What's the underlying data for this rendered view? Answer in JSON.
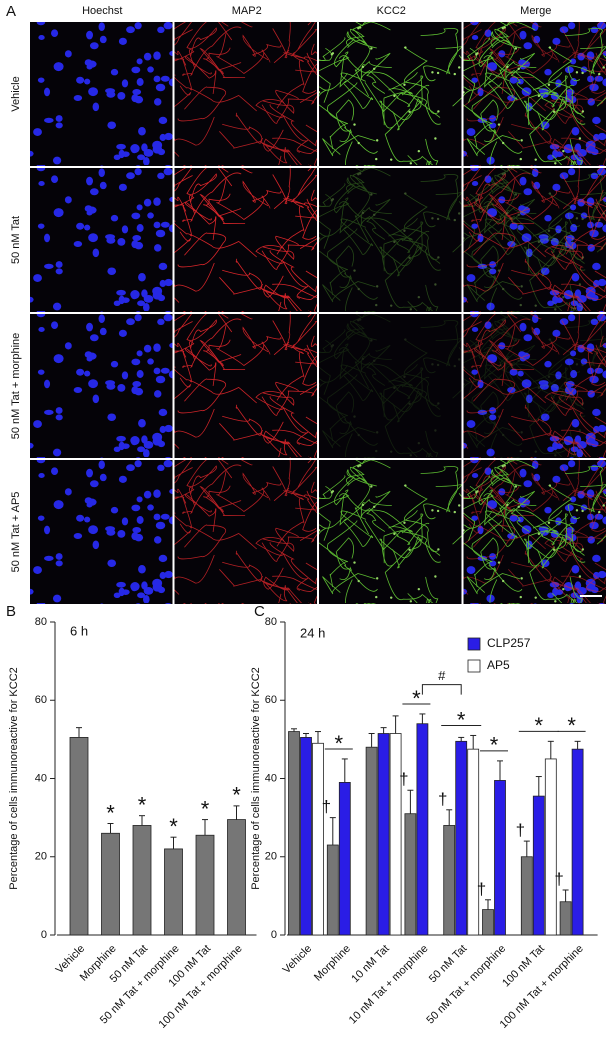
{
  "panel_labels": [
    "A",
    "B",
    "C"
  ],
  "images": {
    "columns": [
      "Hoechst",
      "MAP2",
      "KCC2",
      "Merge"
    ],
    "rows": [
      "Vehicle",
      "50 nM Tat",
      "50 nM Tat + morphine",
      "50 nM Tat + AP5"
    ]
  },
  "chart_data": [
    {
      "type": "bar",
      "annotation": "6 h",
      "y_label": "Percentage of cells immunoreactive for KCC2",
      "categories": [
        "Vehicle",
        "Morphine",
        "50 nM Tat",
        "50 nM Tat + morphine",
        "100 nM Tat",
        "100 nM Tat + morphine"
      ],
      "series": [
        {
          "color": "#767676",
          "values": [
            50.5,
            26,
            28,
            22,
            25.5,
            29.5
          ],
          "errors": [
            2.5,
            2.5,
            2.5,
            3,
            4,
            3.5
          ]
        }
      ],
      "significance": [
        null,
        "*",
        "*",
        "*",
        "*",
        "*"
      ],
      "ylim": [
        0,
        80
      ],
      "yticks": [
        0,
        20,
        40,
        60,
        80
      ]
    },
    {
      "type": "bar",
      "annotation": "24 h",
      "y_label": "Percentage of cells immunoreactive for KCC2",
      "categories": [
        "Vehicle",
        "Morphine",
        "10 nM Tat",
        "10 nM Tat + morphine",
        "50 nM Tat",
        "50 nM Tat + morphine",
        "100 nM Tat",
        "100 nM Tat + morphine"
      ],
      "series": [
        {
          "color": "#767676",
          "values": [
            52,
            23,
            48,
            31,
            28,
            6.5,
            20,
            8.5
          ],
          "errors": [
            0.7,
            7,
            3.5,
            6,
            4,
            2.5,
            4,
            3
          ]
        },
        {
          "name": "CLP257",
          "color": "#2a1de6",
          "values": [
            50.5,
            39,
            51.5,
            54,
            49.5,
            39.5,
            35.5,
            47.5
          ],
          "errors": [
            1,
            6,
            1.5,
            2.5,
            1,
            5,
            5,
            2
          ]
        },
        {
          "name": "AP5",
          "color": "#ffffff",
          "values": [
            49,
            null,
            51.5,
            null,
            47.5,
            null,
            45,
            null
          ],
          "errors": [
            3,
            null,
            4.5,
            null,
            3.5,
            null,
            4.5,
            null
          ]
        }
      ],
      "significance": [
        null,
        "*",
        null,
        "*",
        "*",
        "*",
        "*",
        "*"
      ],
      "dagger": [
        null,
        "†",
        null,
        "†",
        "†",
        "†",
        "†",
        "†"
      ],
      "bracket_label": "#",
      "ylim": [
        0,
        80
      ],
      "yticks": [
        0,
        20,
        40,
        60,
        80
      ]
    }
  ]
}
